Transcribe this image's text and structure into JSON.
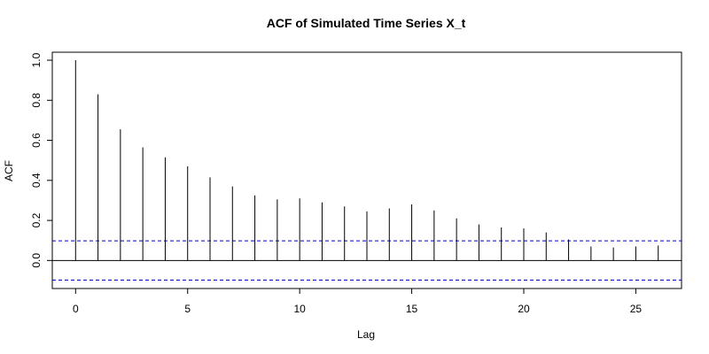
{
  "chart_data": {
    "type": "bar",
    "title": "ACF of Simulated Time Series X_t",
    "xlabel": "Lag",
    "ylabel": "ACF",
    "x": [
      0,
      1,
      2,
      3,
      4,
      5,
      6,
      7,
      8,
      9,
      10,
      11,
      12,
      13,
      14,
      15,
      16,
      17,
      18,
      19,
      20,
      21,
      22,
      23,
      24,
      25,
      26
    ],
    "values": [
      1.0,
      0.83,
      0.655,
      0.565,
      0.515,
      0.47,
      0.415,
      0.37,
      0.325,
      0.305,
      0.31,
      0.29,
      0.27,
      0.245,
      0.26,
      0.28,
      0.25,
      0.21,
      0.18,
      0.165,
      0.16,
      0.14,
      0.105,
      0.07,
      0.065,
      0.07,
      0.075
    ],
    "confidence_bound": 0.098,
    "xlim": [
      -1.04,
      27.04
    ],
    "ylim": [
      -0.14,
      1.04
    ],
    "xticks": [
      0,
      5,
      10,
      15,
      20,
      25
    ],
    "xtick_labels": [
      "0",
      "5",
      "10",
      "15",
      "20",
      "25"
    ],
    "yticks": [
      0,
      0.2,
      0.4,
      0.6,
      0.8,
      1
    ],
    "ytick_labels": [
      "0.0",
      "0.2",
      "0.4",
      "0.6",
      "0.8",
      "1.0"
    ],
    "grid": false,
    "colors": {
      "bars": "#000000",
      "zero_line": "#000000",
      "confidence": "#0000cc",
      "frame": "#000000"
    }
  }
}
